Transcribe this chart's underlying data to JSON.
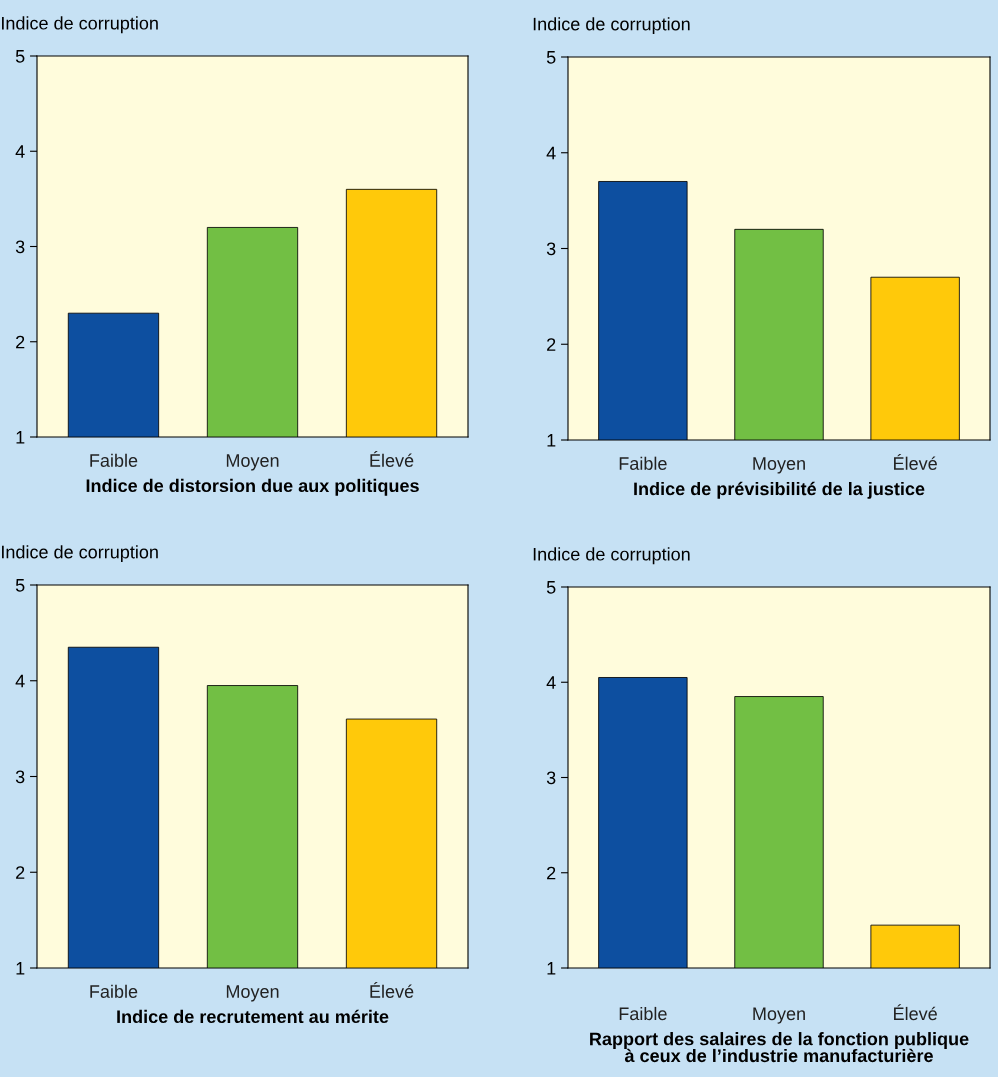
{
  "chart_data": [
    {
      "type": "bar",
      "ylabel": "Indice de corruption",
      "xlabel": "Indice de distorsion due aux politiques",
      "categories": [
        "Faible",
        "Moyen",
        "Élevé"
      ],
      "values": [
        2.3,
        3.2,
        3.6
      ],
      "colors": [
        "#0d4fa0",
        "#72bf44",
        "#ffc90a"
      ],
      "ylim": [
        1,
        5
      ],
      "yticks": [
        1,
        2,
        3,
        4,
        5
      ],
      "grid": false,
      "legend": false
    },
    {
      "type": "bar",
      "ylabel": "Indice de corruption",
      "xlabel": "Indice de prévisibilité de la justice",
      "categories": [
        "Faible",
        "Moyen",
        "Élevé"
      ],
      "values": [
        3.7,
        3.2,
        2.7
      ],
      "colors": [
        "#0d4fa0",
        "#72bf44",
        "#ffc90a"
      ],
      "ylim": [
        1,
        5
      ],
      "yticks": [
        1,
        2,
        3,
        4,
        5
      ],
      "grid": false,
      "legend": false
    },
    {
      "type": "bar",
      "ylabel": "Indice de corruption",
      "xlabel": "Indice de recrutement au mérite",
      "categories": [
        "Faible",
        "Moyen",
        "Élevé"
      ],
      "values": [
        4.35,
        3.95,
        3.6
      ],
      "colors": [
        "#0d4fa0",
        "#72bf44",
        "#ffc90a"
      ],
      "ylim": [
        1,
        5
      ],
      "yticks": [
        1,
        2,
        3,
        4,
        5
      ],
      "grid": false,
      "legend": false
    },
    {
      "type": "bar",
      "ylabel": "Indice de corruption",
      "xlabel": "Rapport des salaires de la fonction publique\nà ceux de l’industrie manufacturière",
      "categories": [
        "Faible",
        "Moyen",
        "Élevé"
      ],
      "values": [
        4.05,
        3.85,
        1.45
      ],
      "colors": [
        "#0d4fa0",
        "#72bf44",
        "#ffc90a"
      ],
      "ylim": [
        1,
        5
      ],
      "yticks": [
        1,
        2,
        3,
        4,
        5
      ],
      "grid": false,
      "legend": false
    }
  ]
}
